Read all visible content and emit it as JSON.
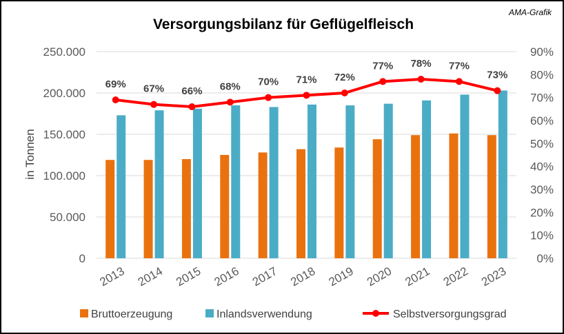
{
  "chart_data": {
    "type": "bar",
    "title": "Versorgungsbilanz für Geflügelfleisch",
    "credit": "AMA-Grafik",
    "ylabel": "in Tonnen",
    "categories": [
      "2013",
      "2014",
      "2015",
      "2016",
      "2017",
      "2018",
      "2019",
      "2020",
      "2021",
      "2022",
      "2023"
    ],
    "ylim": [
      0,
      250000
    ],
    "y_ticks": [
      "0",
      "50.000",
      "100.000",
      "150.000",
      "200.000",
      "250.000"
    ],
    "y2lim": [
      0,
      90
    ],
    "y2_ticks": [
      "0%",
      "10%",
      "20%",
      "30%",
      "40%",
      "50%",
      "60%",
      "70%",
      "80%",
      "90%"
    ],
    "grid": true,
    "legend_position": "bottom",
    "series": [
      {
        "name": "Bruttoerzeugung",
        "type": "bar",
        "axis": "left",
        "color": "#e9720f",
        "values": [
          119000,
          119000,
          120000,
          125000,
          128000,
          132000,
          134000,
          144000,
          149000,
          151000,
          149000
        ]
      },
      {
        "name": "Inlandsverwendung",
        "type": "bar",
        "axis": "left",
        "color": "#4bacc6",
        "values": [
          173000,
          179000,
          181000,
          185000,
          183000,
          186000,
          185000,
          187000,
          191000,
          198000,
          203000
        ]
      },
      {
        "name": "Selbstversorgungsgrad",
        "type": "line",
        "axis": "right",
        "color": "#ff0000",
        "values": [
          69,
          67,
          66,
          68,
          70,
          71,
          72,
          77,
          78,
          77,
          73
        ],
        "labels": [
          "69%",
          "67%",
          "66%",
          "68%",
          "70%",
          "71%",
          "72%",
          "77%",
          "78%",
          "77%",
          "73%"
        ]
      }
    ]
  }
}
